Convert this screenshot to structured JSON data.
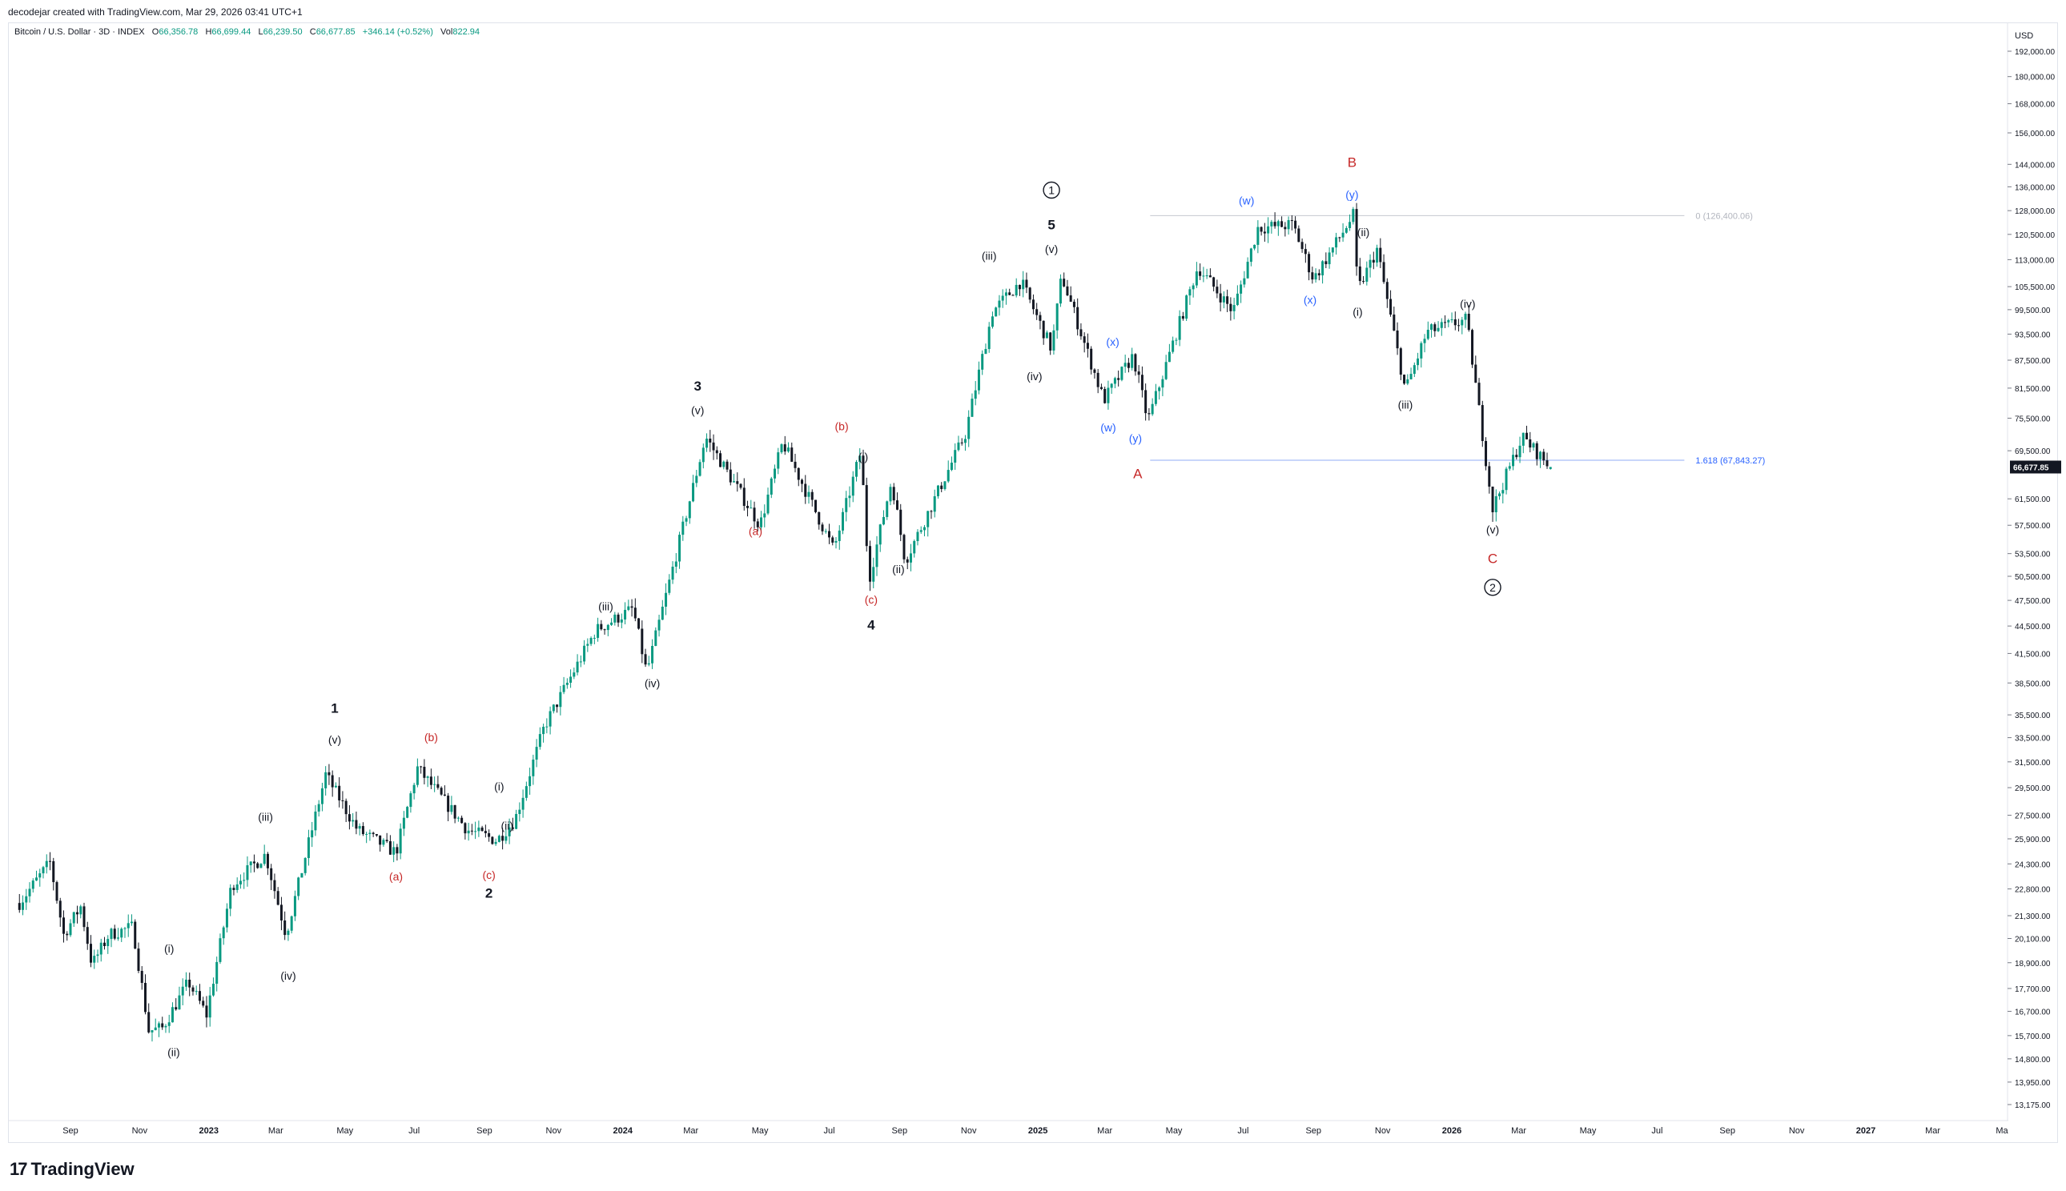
{
  "header": {
    "credit": "decodejar created with TradingView.com, Mar 29, 2026 03:41 UTC+1"
  },
  "legend": {
    "symbol": "Bitcoin / U.S. Dollar · 3D · INDEX",
    "o_label": "O",
    "o_value": "66,356.78",
    "h_label": "H",
    "h_value": "66,699.44",
    "l_label": "L",
    "l_value": "66,239.50",
    "c_label": "C",
    "c_value": "66,677.85",
    "change": "+346.14 (+0.52%)",
    "vol_label": "Vol",
    "vol_value": "822.94"
  },
  "brand": {
    "name": "TradingView",
    "mark": "17"
  },
  "colors": {
    "up": "#089981",
    "down": "#131722",
    "red_label": "#c2185b",
    "blue_label": "#2962ff",
    "fib_line": "#90a4d4",
    "grid": "#e0e3eb"
  },
  "chart_data": {
    "type": "candlestick",
    "y_scale": "log",
    "currency": "USD",
    "last_price_label": "66,677.85",
    "y_ticks": [
      "192,000.00",
      "180,000.00",
      "168,000.00",
      "156,000.00",
      "144,000.00",
      "136,000.00",
      "128,000.00",
      "120,500.00",
      "113,000.00",
      "105,500.00",
      "99,500.00",
      "93,500.00",
      "87,500.00",
      "81,500.00",
      "75,500.00",
      "69,500.00",
      "61,500.00",
      "57,500.00",
      "53,500.00",
      "50,500.00",
      "47,500.00",
      "44,500.00",
      "41,500.00",
      "38,500.00",
      "35,500.00",
      "33,500.00",
      "31,500.00",
      "29,500.00",
      "27,500.00",
      "25,900.00",
      "24,300.00",
      "22,800.00",
      "21,300.00",
      "20,100.00",
      "18,900.00",
      "17,700.00",
      "16,700.00",
      "15,700.00",
      "14,800.00",
      "13,950.00",
      "13,175.00"
    ],
    "x_ticks": [
      {
        "label": "Sep",
        "date": "2022-09-01"
      },
      {
        "label": "Nov",
        "date": "2022-11-01"
      },
      {
        "label": "2023",
        "date": "2023-01-01",
        "bold": true
      },
      {
        "label": "Mar",
        "date": "2023-03-01"
      },
      {
        "label": "May",
        "date": "2023-05-01"
      },
      {
        "label": "Jul",
        "date": "2023-07-01"
      },
      {
        "label": "Sep",
        "date": "2023-09-01"
      },
      {
        "label": "Nov",
        "date": "2023-11-01"
      },
      {
        "label": "2024",
        "date": "2024-01-01",
        "bold": true
      },
      {
        "label": "Mar",
        "date": "2024-03-01"
      },
      {
        "label": "May",
        "date": "2024-05-01"
      },
      {
        "label": "Jul",
        "date": "2024-07-01"
      },
      {
        "label": "Sep",
        "date": "2024-09-01"
      },
      {
        "label": "Nov",
        "date": "2024-11-01"
      },
      {
        "label": "2025",
        "date": "2025-01-01",
        "bold": true
      },
      {
        "label": "Mar",
        "date": "2025-03-01"
      },
      {
        "label": "May",
        "date": "2025-05-01"
      },
      {
        "label": "Jul",
        "date": "2025-07-01"
      },
      {
        "label": "Sep",
        "date": "2025-09-01"
      },
      {
        "label": "Nov",
        "date": "2025-11-01"
      },
      {
        "label": "2026",
        "date": "2026-01-01",
        "bold": true
      },
      {
        "label": "Mar",
        "date": "2026-03-01"
      },
      {
        "label": "May",
        "date": "2026-05-01"
      },
      {
        "label": "Jul",
        "date": "2026-07-01"
      },
      {
        "label": "Sep",
        "date": "2026-09-01"
      },
      {
        "label": "Nov",
        "date": "2026-11-01"
      },
      {
        "label": "2027",
        "date": "2027-01-01",
        "bold": true
      },
      {
        "label": "Mar",
        "date": "2027-03-01"
      },
      {
        "label": "Ma",
        "date": "2027-05-01"
      }
    ],
    "price_path": [
      [
        "2022-07-18",
        22000
      ],
      [
        "2022-08-14",
        24400
      ],
      [
        "2022-08-26",
        20300
      ],
      [
        "2022-09-10",
        21800
      ],
      [
        "2022-09-20",
        18800
      ],
      [
        "2022-10-05",
        20300
      ],
      [
        "2022-10-26",
        20700
      ],
      [
        "2022-11-09",
        15900
      ],
      [
        "2022-11-21",
        16000
      ],
      [
        "2022-12-14",
        18000
      ],
      [
        "2022-12-30",
        16550
      ],
      [
        "2023-01-21",
        23000
      ],
      [
        "2023-02-20",
        24900
      ],
      [
        "2023-03-10",
        20300
      ],
      [
        "2023-04-14",
        30500
      ],
      [
        "2023-05-12",
        26500
      ],
      [
        "2023-06-15",
        25000
      ],
      [
        "2023-07-04",
        31000
      ],
      [
        "2023-08-17",
        26500
      ],
      [
        "2023-09-12",
        25800
      ],
      [
        "2023-09-28",
        27200
      ],
      [
        "2023-10-24",
        34500
      ],
      [
        "2023-12-08",
        44000
      ],
      [
        "2024-01-10",
        46500
      ],
      [
        "2024-01-22",
        39500
      ],
      [
        "2024-03-14",
        72000
      ],
      [
        "2024-05-01",
        57500
      ],
      [
        "2024-05-21",
        71000
      ],
      [
        "2024-07-05",
        54000
      ],
      [
        "2024-07-29",
        69500
      ],
      [
        "2024-08-05",
        50000
      ],
      [
        "2024-08-25",
        64500
      ],
      [
        "2024-09-06",
        52500
      ],
      [
        "2024-10-29",
        72500
      ],
      [
        "2024-11-22",
        99000
      ],
      [
        "2024-12-17",
        107000
      ],
      [
        "2025-01-13",
        90000
      ],
      [
        "2025-01-22",
        108500
      ],
      [
        "2025-02-28",
        79000
      ],
      [
        "2025-03-26",
        88500
      ],
      [
        "2025-04-08",
        75000
      ],
      [
        "2025-05-22",
        111000
      ],
      [
        "2025-06-22",
        99000
      ],
      [
        "2025-07-14",
        122500
      ],
      [
        "2025-08-14",
        123500
      ],
      [
        "2025-09-01",
        107500
      ],
      [
        "2025-10-06",
        126400
      ],
      [
        "2025-10-10",
        104500
      ],
      [
        "2025-10-27",
        116000
      ],
      [
        "2025-11-21",
        81000
      ],
      [
        "2025-12-10",
        94000
      ],
      [
        "2026-01-14",
        97000
      ],
      [
        "2026-02-06",
        60000
      ],
      [
        "2026-03-04",
        72000
      ],
      [
        "2026-03-29",
        66677.85
      ]
    ],
    "fib_levels": [
      {
        "label": "0 (126,400.06)",
        "value": 126400.06,
        "start": "2025-04-10",
        "end": "2026-07-25",
        "color": "#b2b5be"
      },
      {
        "label": "1.618 (67,843.27)",
        "value": 67843.27,
        "start": "2025-04-10",
        "end": "2026-07-25",
        "color": "#2962ff"
      }
    ],
    "wave_labels": [
      {
        "text": "(i)",
        "date": "2022-11-27",
        "price": 19400,
        "color": "black"
      },
      {
        "text": "(ii)",
        "date": "2022-12-01",
        "price": 14900,
        "color": "black"
      },
      {
        "text": "(iii)",
        "date": "2023-02-20",
        "price": 27100,
        "color": "black"
      },
      {
        "text": "(iv)",
        "date": "2023-03-12",
        "price": 18100,
        "color": "black"
      },
      {
        "text": "(v)",
        "date": "2023-04-22",
        "price": 33000,
        "color": "black"
      },
      {
        "text": "1",
        "date": "2023-04-22",
        "price": 35700,
        "color": "black",
        "size": "large"
      },
      {
        "text": "(a)",
        "date": "2023-06-15",
        "price": 23300,
        "color": "red"
      },
      {
        "text": "(b)",
        "date": "2023-07-16",
        "price": 33200,
        "color": "red"
      },
      {
        "text": "(c)",
        "date": "2023-09-05",
        "price": 23400,
        "color": "red"
      },
      {
        "text": "2",
        "date": "2023-09-05",
        "price": 22300,
        "color": "black",
        "size": "large"
      },
      {
        "text": "(i)",
        "date": "2023-09-14",
        "price": 29300,
        "color": "black"
      },
      {
        "text": "(ii)",
        "date": "2023-09-21",
        "price": 26500,
        "color": "black"
      },
      {
        "text": "(iii)",
        "date": "2023-12-17",
        "price": 46300,
        "color": "black"
      },
      {
        "text": "(iv)",
        "date": "2024-01-27",
        "price": 38100,
        "color": "black"
      },
      {
        "text": "(v)",
        "date": "2024-03-07",
        "price": 76300,
        "color": "black"
      },
      {
        "text": "3",
        "date": "2024-03-07",
        "price": 81000,
        "color": "black",
        "size": "large"
      },
      {
        "text": "(a)",
        "date": "2024-04-27",
        "price": 56100,
        "color": "red"
      },
      {
        "text": "(b)",
        "date": "2024-07-12",
        "price": 73200,
        "color": "red"
      },
      {
        "text": "(i)",
        "date": "2024-07-31",
        "price": 67800,
        "color": "black"
      },
      {
        "text": "(c)",
        "date": "2024-08-07",
        "price": 47100,
        "color": "red"
      },
      {
        "text": "(ii)",
        "date": "2024-08-31",
        "price": 50900,
        "color": "black"
      },
      {
        "text": "4",
        "date": "2024-08-07",
        "price": 44100,
        "color": "black",
        "size": "large"
      },
      {
        "text": "(iii)",
        "date": "2024-11-19",
        "price": 113000,
        "color": "black"
      },
      {
        "text": "(iv)",
        "date": "2024-12-29",
        "price": 83200,
        "color": "black"
      },
      {
        "text": "(v)",
        "date": "2025-01-13",
        "price": 115000,
        "color": "black"
      },
      {
        "text": "5",
        "date": "2025-01-13",
        "price": 122000,
        "color": "black",
        "size": "large"
      },
      {
        "text": "1",
        "date": "2025-01-13",
        "price": 133500,
        "color": "black",
        "size": "large",
        "circled": true
      },
      {
        "text": "(x)",
        "date": "2025-03-08",
        "price": 90800,
        "color": "blue"
      },
      {
        "text": "(w)",
        "date": "2025-03-04",
        "price": 73000,
        "color": "blue"
      },
      {
        "text": "(y)",
        "date": "2025-03-28",
        "price": 71000,
        "color": "blue"
      },
      {
        "text": "A",
        "date": "2025-03-30",
        "price": 64800,
        "color": "red",
        "size": "large"
      },
      {
        "text": "(w)",
        "date": "2025-07-04",
        "price": 130000,
        "color": "blue"
      },
      {
        "text": "(x)",
        "date": "2025-08-29",
        "price": 101000,
        "color": "blue"
      },
      {
        "text": "(y)",
        "date": "2025-10-05",
        "price": 132000,
        "color": "blue"
      },
      {
        "text": "B",
        "date": "2025-10-05",
        "price": 143000,
        "color": "red",
        "size": "large"
      },
      {
        "text": "(ii)",
        "date": "2025-10-15",
        "price": 120000,
        "color": "black"
      },
      {
        "text": "(i)",
        "date": "2025-10-10",
        "price": 98000,
        "color": "black"
      },
      {
        "text": "(iv)",
        "date": "2026-01-15",
        "price": 100000,
        "color": "black"
      },
      {
        "text": "(iii)",
        "date": "2025-11-21",
        "price": 77400,
        "color": "black"
      },
      {
        "text": "(v)",
        "date": "2026-02-06",
        "price": 56300,
        "color": "black"
      },
      {
        "text": "C",
        "date": "2026-02-06",
        "price": 52200,
        "color": "red",
        "size": "large"
      },
      {
        "text": "2",
        "date": "2026-02-06",
        "price": 48600,
        "color": "black",
        "size": "large",
        "circled": true
      }
    ]
  }
}
